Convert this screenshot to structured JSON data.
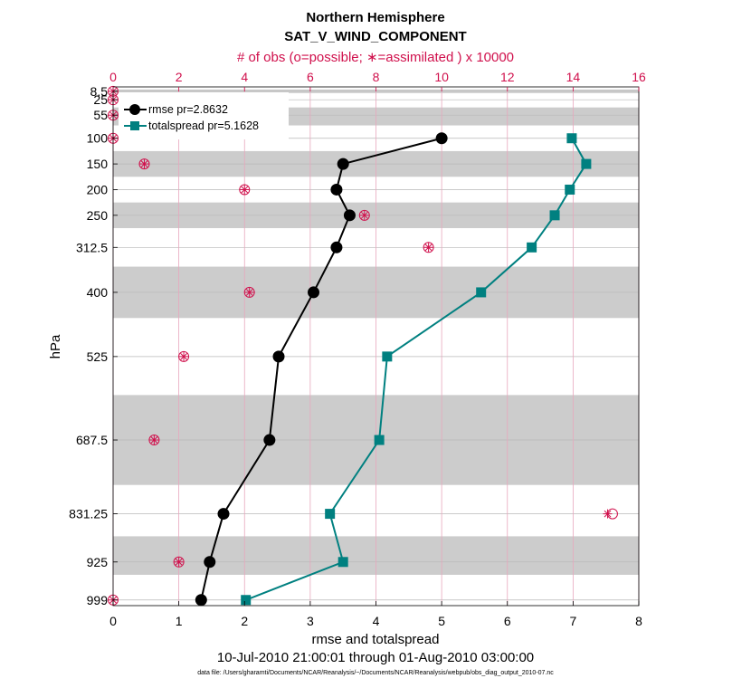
{
  "chart_data": {
    "type": "line",
    "title": "Northern Hemisphere",
    "subtitle": "SAT_V_WIND_COMPONENT",
    "top_axis_label": "# of obs (o=possible; ∗=assimilated ) x 10000",
    "xlabel": "rmse and totalspread",
    "ylabel": "hPa",
    "date_range": "10-Jul-2010 21:00:01 through 01-Aug-2010 03:00:00",
    "footnote": "data file: /Users/gharamti/Documents/NCAR/Reanalysis/~/Documents/NCAR/Reanalysis/webpub/obs_diag_output_2010-07.nc",
    "xlim": [
      0,
      8
    ],
    "top_xlim": [
      0,
      16
    ],
    "x_ticks": [
      "0",
      "1",
      "2",
      "3",
      "4",
      "5",
      "6",
      "7",
      "8"
    ],
    "top_x_ticks": [
      "0",
      "2",
      "4",
      "6",
      "8",
      "10",
      "12",
      "14",
      "16"
    ],
    "y_levels": [
      8.5,
      25,
      55,
      100,
      150,
      200,
      250,
      312.5,
      400,
      525,
      687.5,
      831.25,
      925,
      999
    ],
    "y_tick_labels": [
      "8.5",
      "25",
      "55",
      "100",
      "150",
      "200",
      "250",
      "312.5",
      "400",
      "525",
      "687.5",
      "831.25",
      "925",
      "999"
    ],
    "ylim_top": 0,
    "ylim_bottom": 1010,
    "shaded_bands": [
      [
        5,
        12
      ],
      [
        40,
        75
      ],
      [
        125,
        175
      ],
      [
        225,
        275
      ],
      [
        350,
        450
      ],
      [
        600,
        775
      ],
      [
        875,
        950
      ]
    ],
    "legend_position": "top-left",
    "colors": {
      "rmse": "#000000",
      "totalspread": "#008080",
      "obs": "#d0104c",
      "band": "#cccccc"
    },
    "series": [
      {
        "name": "rmse pr=2.8632",
        "marker": "circle",
        "levels": [
          100,
          150,
          200,
          250,
          312.5,
          400,
          525,
          687.5,
          831.25,
          925,
          999
        ],
        "values": [
          5.0,
          3.5,
          3.4,
          3.6,
          3.4,
          3.05,
          2.52,
          2.38,
          1.68,
          1.47,
          1.34
        ]
      },
      {
        "name": "totalspread pr=5.1628",
        "marker": "square",
        "levels": [
          100,
          150,
          200,
          250,
          312.5,
          400,
          525,
          687.5,
          831.25,
          925,
          999
        ],
        "values": [
          6.98,
          7.2,
          6.95,
          6.72,
          6.37,
          5.6,
          4.17,
          4.05,
          3.3,
          3.5,
          2.02
        ]
      }
    ],
    "obs_counts": {
      "levels": [
        8.5,
        25,
        55,
        100,
        150,
        200,
        250,
        312.5,
        400,
        525,
        687.5,
        831.25,
        925,
        999
      ],
      "possible": [
        0,
        0,
        0,
        0,
        0.95,
        4.0,
        7.65,
        9.6,
        4.15,
        2.15,
        1.25,
        15.2,
        2.0,
        0
      ],
      "assimilated": [
        0,
        0,
        0,
        0,
        0.95,
        4.0,
        7.65,
        9.6,
        4.15,
        2.15,
        1.25,
        15.05,
        2.0,
        0
      ]
    }
  }
}
